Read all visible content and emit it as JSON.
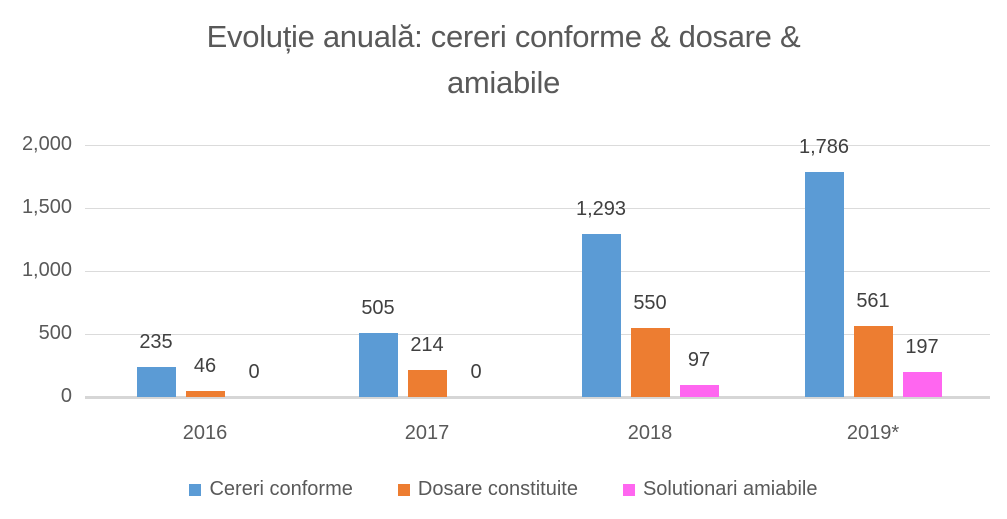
{
  "page": {
    "background": "#FFFFFF"
  },
  "title_lines": [
    "Evoluție anuală: cereri conforme & dosare &",
    "amiabile"
  ],
  "chart_data": {
    "type": "bar",
    "title": "Evoluție anuală: cereri conforme & dosare & amiabile",
    "categories": [
      "2016",
      "2017",
      "2018",
      "2019*"
    ],
    "series": [
      {
        "name": "Cereri conforme",
        "color": "#5B9BD5",
        "values": [
          235,
          505,
          1293,
          1786
        ],
        "labels": [
          "235",
          "505",
          "1,293",
          "1,786"
        ]
      },
      {
        "name": "Dosare constituite",
        "color": "#ED7D31",
        "values": [
          46,
          214,
          550,
          561
        ],
        "labels": [
          "46",
          "214",
          "550",
          "561"
        ]
      },
      {
        "name": "Solutionari amiabile",
        "color": "#FF66F0",
        "values": [
          0,
          0,
          97,
          197
        ],
        "labels": [
          "0",
          "0",
          "97",
          "197"
        ]
      }
    ],
    "y_axis": {
      "ticks": [
        "0",
        "500",
        "1,000",
        "1,500",
        "2,000"
      ],
      "min": 0,
      "max": 2000
    },
    "grid": true,
    "legend_position": "bottom",
    "colors": {
      "title_text": "#595959",
      "axis_text": "#595959",
      "data_label_text": "#404040",
      "gridline": "#DBDBDB",
      "axis_line": "#D6D6D6"
    }
  }
}
